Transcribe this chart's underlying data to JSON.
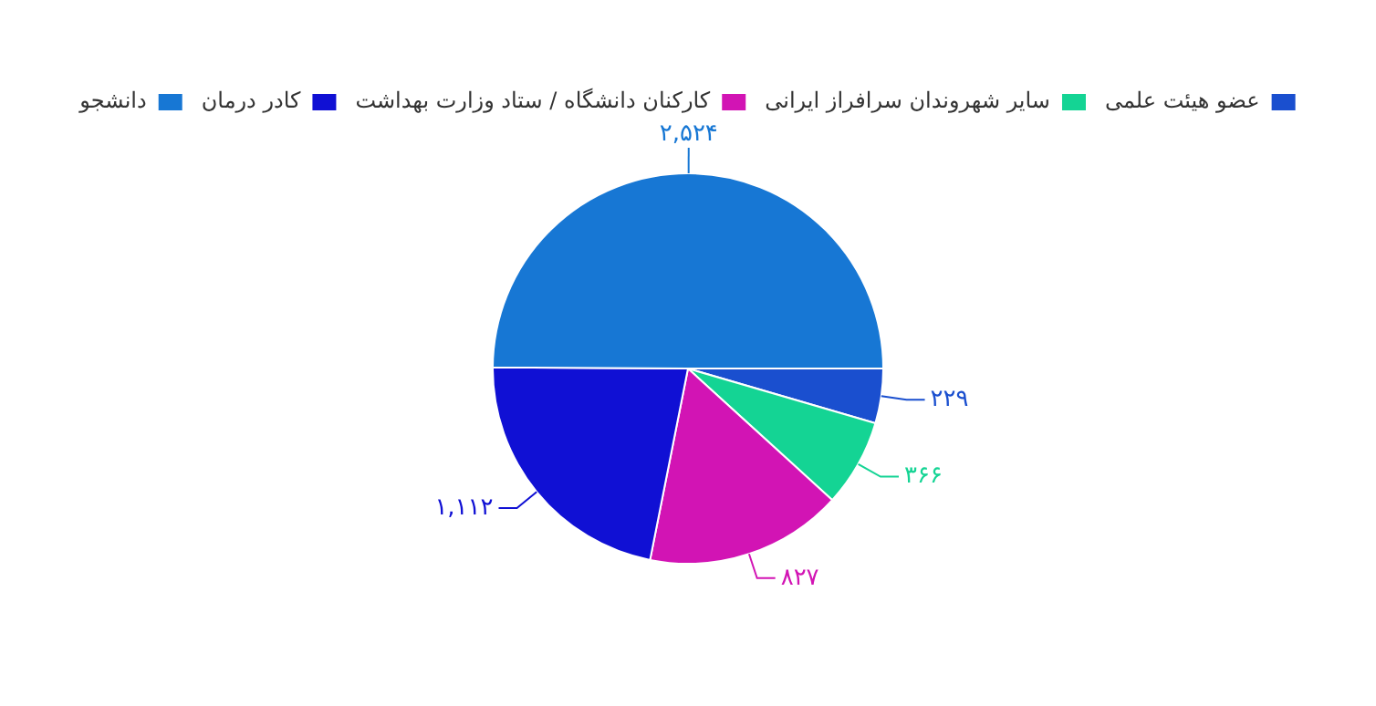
{
  "chart_data": {
    "type": "pie",
    "categories": [
      "عضو هیئت علمی",
      "سایر شهروندان سرافراز ایرانی",
      "کارکنان دانشگاه / ستاد وزارت بهداشت",
      "کادر درمان",
      "دانشجو"
    ],
    "values": [
      229,
      366,
      827,
      1112,
      2524
    ],
    "colors": [
      "#1a4fcf",
      "#14d494",
      "#d214b4",
      "#1010d4",
      "#1777d4"
    ],
    "value_labels": [
      "۲۲۹",
      "۳۶۶",
      "۸۲۷",
      "۱,۱۱۲",
      "۲,۵۲۴"
    ],
    "legend": "top"
  }
}
